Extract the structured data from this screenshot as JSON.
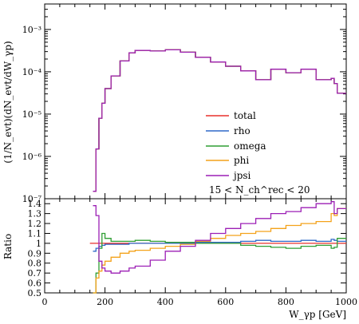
{
  "chart_data": [
    {
      "type": "line",
      "panel": "main",
      "ylabel": "(1/N_evt)(dN_evt/dW_γp)",
      "yscale": "log",
      "ylim": [
        1e-07,
        0.004
      ],
      "xlim": [
        0,
        1000
      ],
      "y_tick_labels": [
        "10⁻⁷",
        "10⁻⁶",
        "10⁻⁵",
        "10⁻⁴",
        "10⁻³"
      ],
      "legend": {
        "placement": "lower-right",
        "entries": [
          "total",
          "rho",
          "omega",
          "phi",
          "jpsi"
        ],
        "cut_label": "15 < N_ch^rec < 20"
      },
      "x": [
        150,
        160,
        170,
        180,
        190,
        200,
        220,
        250,
        280,
        300,
        350,
        400,
        450,
        500,
        550,
        600,
        650,
        700,
        750,
        800,
        850,
        900,
        950,
        960,
        970,
        1000
      ],
      "series": [
        {
          "name": "total",
          "color": "#e8312b",
          "values": [
            null,
            1.5e-07,
            1.5e-06,
            8e-06,
            1.8e-05,
            4e-05,
            8e-05,
            0.00018,
            0.00028,
            0.00032,
            0.00031,
            0.00033,
            0.00029,
            0.00022,
            0.00017,
            0.000135,
            0.000105,
            6.5e-05,
            0.000115,
            9.5e-05,
            0.000115,
            6.5e-05,
            7e-05,
            5.3e-05,
            3.1e-05,
            3.5e-05
          ]
        },
        {
          "name": "rho",
          "color": "#2e68c8",
          "values": [
            null,
            1.5e-07,
            1.5e-06,
            8e-06,
            1.8e-05,
            4e-05,
            8e-05,
            0.00018,
            0.00028,
            0.00032,
            0.00031,
            0.00033,
            0.00029,
            0.00022,
            0.00017,
            0.000135,
            0.000105,
            6.5e-05,
            0.000115,
            9.5e-05,
            0.000115,
            6.5e-05,
            7e-05,
            5.3e-05,
            3.1e-05,
            3.5e-05
          ]
        },
        {
          "name": "omega",
          "color": "#2f9e33",
          "values": [
            null,
            1.5e-07,
            1.5e-06,
            8e-06,
            1.8e-05,
            4e-05,
            8e-05,
            0.00018,
            0.00028,
            0.00032,
            0.00031,
            0.00033,
            0.00029,
            0.00022,
            0.00017,
            0.000135,
            0.000105,
            6.5e-05,
            0.000115,
            9.5e-05,
            0.000115,
            6.5e-05,
            7e-05,
            5.3e-05,
            3.1e-05,
            3.5e-05
          ]
        },
        {
          "name": "phi",
          "color": "#f4a21a",
          "values": [
            null,
            1.5e-07,
            1.5e-06,
            8e-06,
            1.8e-05,
            4e-05,
            8e-05,
            0.00018,
            0.00028,
            0.00032,
            0.00031,
            0.00033,
            0.00029,
            0.00022,
            0.00017,
            0.000135,
            0.000105,
            6.5e-05,
            0.000115,
            9.5e-05,
            0.000115,
            6.5e-05,
            7e-05,
            5.3e-05,
            3.1e-05,
            3.5e-05
          ]
        },
        {
          "name": "jpsi",
          "color": "#9c1fb5",
          "values": [
            null,
            1.5e-07,
            1.5e-06,
            8e-06,
            1.8e-05,
            4e-05,
            8e-05,
            0.00018,
            0.00028,
            0.00032,
            0.00031,
            0.00033,
            0.00029,
            0.00022,
            0.00017,
            0.000135,
            0.000105,
            6.5e-05,
            0.000115,
            9.5e-05,
            0.000115,
            6.5e-05,
            7e-05,
            5.3e-05,
            3.1e-05,
            3.5e-05
          ]
        }
      ]
    },
    {
      "type": "line",
      "panel": "ratio",
      "ylabel": "Ratio",
      "xlabel": "W_γp [GeV]",
      "xlim": [
        0,
        1000
      ],
      "ylim": [
        0.5,
        1.45
      ],
      "x_ticks": [
        0,
        200,
        400,
        600,
        800,
        1000
      ],
      "y_ticks": [
        0.5,
        0.6,
        0.7,
        0.8,
        0.9,
        1,
        1.1,
        1.2,
        1.3,
        1.4
      ],
      "x": [
        150,
        160,
        170,
        180,
        190,
        200,
        220,
        250,
        280,
        300,
        350,
        400,
        450,
        500,
        550,
        600,
        650,
        700,
        750,
        800,
        850,
        900,
        950,
        960,
        970,
        1000
      ],
      "series": [
        {
          "name": "total",
          "color": "#e8312b",
          "values": [
            1,
            1,
            1,
            1,
            1,
            1,
            1,
            1,
            1,
            1,
            1,
            1,
            1,
            1,
            1,
            1,
            1,
            1,
            1,
            1,
            1,
            1,
            1,
            1,
            1,
            1
          ]
        },
        {
          "name": "rho",
          "color": "#2e68c8",
          "values": [
            null,
            0.92,
            0.95,
            0.97,
            0.98,
            0.99,
            0.99,
            0.99,
            1,
            1,
            1,
            1,
            1,
            1.01,
            1.01,
            1.01,
            1.02,
            1.03,
            1.02,
            1.02,
            1.03,
            1.02,
            1.04,
            1.03,
            1.02,
            1.03
          ]
        },
        {
          "name": "omega",
          "color": "#2f9e33",
          "values": [
            null,
            0.5,
            0.7,
            0.95,
            1.1,
            1.05,
            1.02,
            1.02,
            1.02,
            1.03,
            1.02,
            1.01,
            1.01,
            1,
            1,
            1,
            0.98,
            0.97,
            0.96,
            0.95,
            0.97,
            0.98,
            0.95,
            0.96,
            1.05,
            1.02
          ]
        },
        {
          "name": "phi",
          "color": "#f4a21a",
          "values": [
            null,
            0.5,
            0.65,
            0.72,
            0.78,
            0.82,
            0.86,
            0.9,
            0.92,
            0.93,
            0.95,
            0.97,
            0.99,
            1.02,
            1.05,
            1.08,
            1.1,
            1.12,
            1.15,
            1.18,
            1.2,
            1.22,
            1.3,
            1.28,
            1.35,
            1.42
          ]
        },
        {
          "name": "jpsi",
          "color": "#9c1fb5",
          "values": [
            null,
            1.38,
            1.28,
            0.82,
            0.75,
            0.72,
            0.7,
            0.72,
            0.75,
            0.77,
            0.83,
            0.92,
            0.97,
            1.03,
            1.1,
            1.15,
            1.2,
            1.25,
            1.3,
            1.32,
            1.36,
            1.4,
            1.42,
            1.3,
            1.35,
            1.4
          ]
        }
      ]
    }
  ]
}
